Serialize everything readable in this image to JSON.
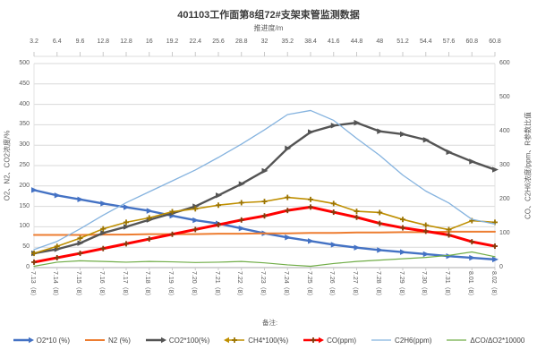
{
  "chart_data": {
    "type": "line",
    "title": "401103工作面第8组72#支架束管监测数据",
    "remark": "备注:",
    "legend_position": "bottom",
    "grid": true,
    "gridline_color": "#d9d9d9",
    "axis_text_color": "#595959",
    "top_axis": {
      "title": "推进度/m",
      "ticks": [
        "3.2",
        "6.4",
        "9.6",
        "12.8",
        "12.8",
        "16",
        "19.2",
        "22.4",
        "25.6",
        "28.8",
        "32",
        "35.2",
        "38.4",
        "41.6",
        "44.8",
        "48",
        "51.2",
        "54.4",
        "57.6",
        "60.8",
        "60.8"
      ]
    },
    "left_axis": {
      "title": "O2、N2、CO2浓度/%",
      "min": 0,
      "max": 500,
      "step": 50,
      "tick_labels": [
        "0",
        "50",
        "100",
        "150",
        "200",
        "250",
        "300",
        "350",
        "400",
        "450",
        "500"
      ]
    },
    "right_axis": {
      "title": "CO、C2H6浓度/ppm、R参数比值",
      "min": 0,
      "max": 600,
      "step": 100,
      "tick_labels": [
        "0",
        "100",
        "200",
        "300",
        "400",
        "500",
        "600"
      ]
    },
    "categories": [
      "7.13（8）",
      "7.14（8）",
      "7.15（8）",
      "7.16（8）",
      "7.17（8）",
      "7.18（8）",
      "7.19（8）",
      "7.20（8）",
      "7.21（8）",
      "7.22（8）",
      "7.23（8）",
      "7.24（8）",
      "7.25（8）",
      "7.26（8）",
      "7.27（8）",
      "7.28（8）",
      "7.29（8）",
      "7.30（8）",
      "7.31（8）",
      "8.01（8）",
      "8.02（8）"
    ],
    "series": [
      {
        "name": "O2*10 (%)",
        "axis": "left",
        "color": "#4472c4",
        "width": 2.4,
        "marker": "arrow",
        "marker_color": "#4472c4",
        "values": [
          190,
          177,
          167,
          157,
          148,
          139,
          127,
          116,
          108,
          96,
          84,
          74,
          65,
          56,
          49,
          43,
          38,
          33,
          28,
          24,
          20
        ]
      },
      {
        "name": "N2 (%)",
        "axis": "left",
        "color": "#ed7d31",
        "width": 2,
        "marker": "none",
        "marker_color": "#ed7d31",
        "values": [
          80,
          80,
          80,
          81,
          81,
          82,
          82,
          82,
          83,
          83,
          84,
          84,
          85,
          85,
          86,
          86,
          87,
          87,
          88,
          88,
          88
        ]
      },
      {
        "name": "CO2*100(%)",
        "axis": "left",
        "color": "#545454",
        "width": 2.4,
        "marker": "arrow",
        "marker_color": "#545454",
        "values": [
          35,
          45,
          60,
          85,
          100,
          117,
          133,
          150,
          177,
          205,
          237,
          292,
          332,
          348,
          355,
          334,
          327,
          313,
          283,
          260,
          240
        ]
      },
      {
        "name": "CH4*100(%)",
        "axis": "left",
        "color": "#bf8f00",
        "width": 1.6,
        "marker": "plus",
        "marker_color": "#9c7400",
        "values": [
          35,
          52,
          72,
          95,
          111,
          122,
          137,
          144,
          153,
          159,
          162,
          172,
          167,
          157,
          138,
          135,
          118,
          104,
          93,
          115,
          111
        ]
      },
      {
        "name": "CO(ppm)",
        "axis": "right",
        "color": "#ff0000",
        "width": 3,
        "marker": "plus",
        "marker_color": "#843c0c",
        "values": [
          16,
          29,
          42,
          56,
          70,
          84,
          98,
          112,
          126,
          140,
          152,
          168,
          178,
          163,
          148,
          130,
          117,
          107,
          96,
          76,
          63
        ]
      },
      {
        "name": "C2H6(ppm)",
        "axis": "right",
        "color": "#85b3df",
        "width": 1.3,
        "marker": "none",
        "marker_color": "#85b3df",
        "values": [
          53,
          77,
          114,
          154,
          191,
          223,
          255,
          287,
          324,
          363,
          405,
          450,
          462,
          433,
          380,
          330,
          272,
          225,
          190,
          142,
          128
        ]
      },
      {
        "name": "ΔCO/ΔO2*10000",
        "axis": "right",
        "color": "#70ad47",
        "width": 1.2,
        "marker": "none",
        "marker_color": "#70ad47",
        "values": [
          4,
          16,
          20,
          18,
          16,
          18,
          17,
          15,
          16,
          18,
          14,
          8,
          4,
          12,
          18,
          22,
          26,
          30,
          36,
          46,
          32
        ]
      }
    ]
  }
}
